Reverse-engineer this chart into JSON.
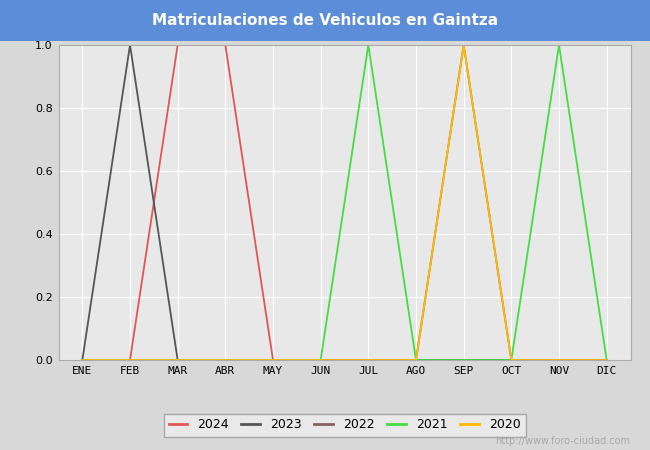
{
  "title": "Matriculaciones de Vehiculos en Gaintza",
  "title_color": "#4080d0",
  "months": [
    "ENE",
    "FEB",
    "MAR",
    "ABR",
    "MAY",
    "JUN",
    "JUL",
    "AGO",
    "SEP",
    "OCT",
    "NOV",
    "DIC"
  ],
  "series": [
    {
      "label": "2024",
      "color": "#e05555",
      "data": [
        0.0,
        0.0,
        1.0,
        1.0,
        0.0,
        0.0,
        0.0,
        0.0,
        0.0,
        0.0,
        0.0,
        0.0
      ]
    },
    {
      "label": "2023",
      "color": "#555555",
      "data": [
        0.0,
        1.0,
        0.0,
        0.0,
        0.0,
        0.0,
        0.0,
        0.0,
        0.0,
        0.0,
        0.0,
        0.0
      ]
    },
    {
      "label": "2022",
      "color": "#8B6060",
      "data": [
        0.0,
        0.0,
        0.0,
        0.0,
        0.0,
        0.0,
        0.0,
        0.0,
        1.0,
        0.0,
        0.0,
        0.0
      ]
    },
    {
      "label": "2021",
      "color": "#44dd44",
      "data": [
        0.0,
        0.0,
        0.0,
        0.0,
        0.0,
        0.0,
        1.0,
        0.0,
        0.0,
        0.0,
        1.0,
        0.0
      ]
    },
    {
      "label": "2020",
      "color": "#ffbb00",
      "data": [
        0.0,
        0.0,
        0.0,
        0.0,
        0.0,
        0.0,
        0.0,
        0.0,
        1.0,
        0.0,
        0.0,
        0.0
      ]
    }
  ],
  "ylim": [
    0.0,
    1.0
  ],
  "yticks": [
    0.0,
    0.2,
    0.4,
    0.6,
    0.8,
    1.0
  ],
  "fig_bg": "#d8d8d8",
  "plot_bg": "#e8e8e8",
  "grid_color": "#ffffff",
  "title_bg_color": "#5b8dd9",
  "watermark": "http://www.foro-ciudad.com"
}
